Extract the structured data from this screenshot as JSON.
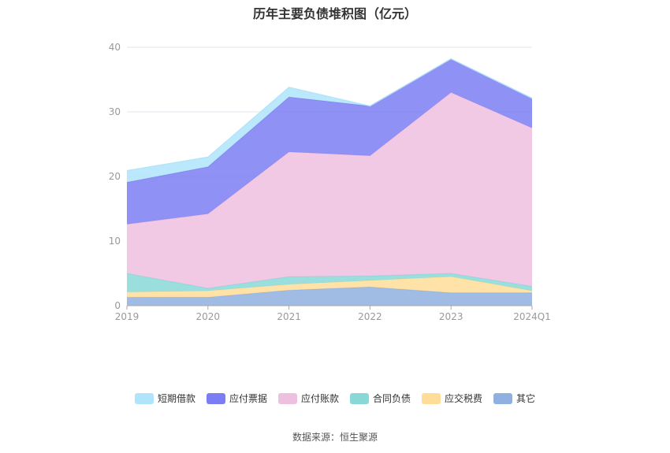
{
  "chart_data": {
    "type": "area",
    "stacked": true,
    "title": "历年主要负债堆积图（亿元）",
    "categories": [
      "2019",
      "2020",
      "2021",
      "2022",
      "2023",
      "2024Q1"
    ],
    "ylim": [
      0,
      40
    ],
    "yticks": [
      0,
      10,
      20,
      30,
      40
    ],
    "grid": true,
    "legend_position": "bottom",
    "series": [
      {
        "name": "其它",
        "color": "#8fb0e0",
        "values": [
          1.3,
          1.3,
          2.4,
          2.9,
          2.0,
          2.0
        ]
      },
      {
        "name": "应交税费",
        "color": "#ffdd99",
        "values": [
          0.8,
          1.0,
          0.9,
          1.0,
          2.5,
          0.3
        ]
      },
      {
        "name": "合同负债",
        "color": "#88d8d8",
        "values": [
          2.9,
          0.4,
          1.2,
          0.7,
          0.5,
          0.7
        ]
      },
      {
        "name": "应付账款",
        "color": "#eec0e0",
        "values": [
          7.6,
          11.5,
          19.3,
          18.6,
          28.0,
          24.5
        ]
      },
      {
        "name": "应付票据",
        "color": "#7b7ef2",
        "values": [
          6.5,
          7.3,
          8.5,
          7.7,
          5.2,
          4.6
        ]
      },
      {
        "name": "短期借款",
        "color": "#b0e4fa",
        "values": [
          1.8,
          1.5,
          1.5,
          0.0,
          0.0,
          0.0
        ]
      }
    ]
  },
  "legend_order": [
    "短期借款",
    "应付票据",
    "应付账款",
    "合同负债",
    "应交税费",
    "其它"
  ],
  "source": "数据来源：恒生聚源"
}
